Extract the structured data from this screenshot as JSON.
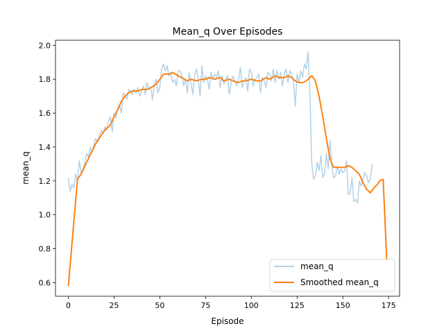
{
  "chart_data": {
    "type": "line",
    "title": "Mean_q Over Episodes",
    "xlabel": "Episode",
    "ylabel": "mean_q",
    "xlim": [
      -7,
      181
    ],
    "ylim": [
      0.52,
      2.03
    ],
    "xticks": [
      0,
      25,
      50,
      75,
      100,
      125,
      150,
      175
    ],
    "yticks": [
      0.6,
      0.8,
      1.0,
      1.2,
      1.4,
      1.6,
      1.8,
      2.0
    ],
    "xtick_labels": [
      "0",
      "25",
      "50",
      "75",
      "100",
      "125",
      "150",
      "175"
    ],
    "ytick_labels": [
      "0.6",
      "0.8",
      "1.0",
      "1.2",
      "1.4",
      "1.6",
      "1.8",
      "2.0"
    ],
    "grid": false,
    "legend_position": "lower-right",
    "series": [
      {
        "name": "mean_q",
        "color": "#b2d1e6",
        "values": [
          1.22,
          1.14,
          1.18,
          1.16,
          1.24,
          1.2,
          1.32,
          1.25,
          1.27,
          1.31,
          1.36,
          1.34,
          1.4,
          1.37,
          1.42,
          1.45,
          1.43,
          1.47,
          1.5,
          1.48,
          1.52,
          1.5,
          1.55,
          1.58,
          1.49,
          1.6,
          1.57,
          1.63,
          1.65,
          1.6,
          1.72,
          1.7,
          1.68,
          1.74,
          1.73,
          1.71,
          1.74,
          1.72,
          1.75,
          1.7,
          1.73,
          1.76,
          1.71,
          1.78,
          1.74,
          1.75,
          1.68,
          1.77,
          1.8,
          1.72,
          1.75,
          1.86,
          1.89,
          1.85,
          1.88,
          1.82,
          1.84,
          1.78,
          1.8,
          1.76,
          1.85,
          1.85,
          1.83,
          1.76,
          1.8,
          1.72,
          1.84,
          1.78,
          1.71,
          1.82,
          1.86,
          1.8,
          1.7,
          1.88,
          1.78,
          1.82,
          1.8,
          1.74,
          1.84,
          1.8,
          1.83,
          1.81,
          1.85,
          1.75,
          1.82,
          1.77,
          1.8,
          1.82,
          1.71,
          1.78,
          1.82,
          1.79,
          1.76,
          1.8,
          1.87,
          1.75,
          1.79,
          1.81,
          1.73,
          1.86,
          1.84,
          1.76,
          1.8,
          1.81,
          1.83,
          1.72,
          1.81,
          1.79,
          1.75,
          1.84,
          1.83,
          1.79,
          1.86,
          1.78,
          1.85,
          1.8,
          1.84,
          1.76,
          1.83,
          1.86,
          1.78,
          1.85,
          1.83,
          1.79,
          1.64,
          1.83,
          1.78,
          1.85,
          1.81,
          1.89,
          1.86,
          1.96,
          1.72,
          1.3,
          1.21,
          1.23,
          1.31,
          1.26,
          1.35,
          1.22,
          1.24,
          1.36,
          1.27,
          1.44,
          1.28,
          1.22,
          1.23,
          1.29,
          1.24,
          1.27,
          1.25,
          1.26,
          1.32,
          1.12,
          1.13,
          1.22,
          1.08,
          1.09,
          1.07,
          1.2,
          1.17,
          1.21,
          1.25,
          1.23,
          1.19,
          1.21,
          1.3
        ],
        "x_start": 0
      },
      {
        "name": "Smoothed mean_q",
        "color": "#ff7f0e",
        "x": [
          0,
          5,
          7,
          10,
          15,
          18,
          20,
          23,
          25,
          27,
          29,
          31,
          33,
          35,
          38,
          40,
          43,
          45,
          48,
          50,
          52,
          55,
          57,
          60,
          62,
          65,
          67,
          70,
          73,
          75,
          77,
          80,
          83,
          85,
          88,
          90,
          93,
          95,
          97,
          100,
          103,
          105,
          108,
          110,
          113,
          115,
          118,
          120,
          122,
          124,
          126,
          128,
          130,
          132,
          133,
          135,
          137,
          139,
          141,
          143,
          145,
          147,
          149,
          151,
          153,
          155,
          157,
          159,
          161,
          163,
          165,
          167,
          169,
          170,
          172,
          174
        ],
        "values": [
          0.58,
          1.21,
          1.24,
          1.31,
          1.42,
          1.47,
          1.5,
          1.53,
          1.58,
          1.62,
          1.67,
          1.7,
          1.72,
          1.73,
          1.73,
          1.74,
          1.74,
          1.75,
          1.77,
          1.8,
          1.83,
          1.83,
          1.84,
          1.82,
          1.81,
          1.79,
          1.8,
          1.79,
          1.8,
          1.8,
          1.81,
          1.8,
          1.81,
          1.79,
          1.8,
          1.79,
          1.78,
          1.79,
          1.79,
          1.8,
          1.79,
          1.79,
          1.81,
          1.8,
          1.82,
          1.81,
          1.81,
          1.82,
          1.81,
          1.79,
          1.78,
          1.78,
          1.79,
          1.81,
          1.82,
          1.79,
          1.7,
          1.58,
          1.45,
          1.33,
          1.28,
          1.28,
          1.28,
          1.28,
          1.29,
          1.28,
          1.26,
          1.24,
          1.19,
          1.15,
          1.13,
          1.16,
          1.18,
          1.2,
          1.21,
          0.73
        ]
      }
    ]
  }
}
